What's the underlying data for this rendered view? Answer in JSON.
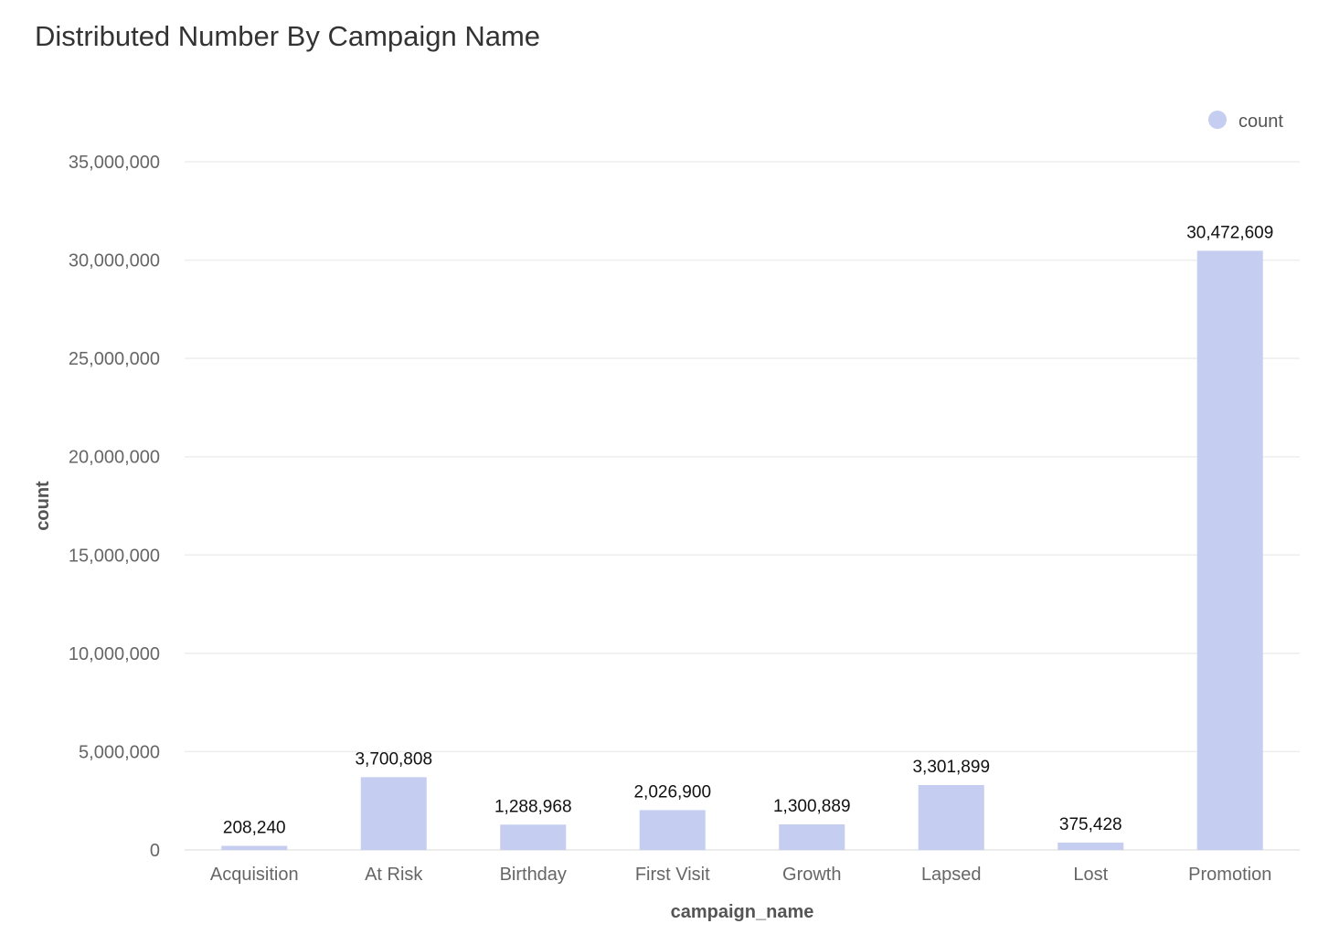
{
  "chart_data": {
    "type": "bar",
    "title": "Distributed Number By Campaign Name",
    "xlabel": "campaign_name",
    "ylabel": "count",
    "categories": [
      "Acquisition",
      "At Risk",
      "Birthday",
      "First Visit",
      "Growth",
      "Lapsed",
      "Lost",
      "Promotion"
    ],
    "series": [
      {
        "name": "count",
        "values": [
          208240,
          3700808,
          1288968,
          2026900,
          1300889,
          3301899,
          375428,
          30472609
        ],
        "value_labels": [
          "208,240",
          "3,700,808",
          "1,288,968",
          "2,026,900",
          "1,300,889",
          "3,301,899",
          "375,428",
          "30,472,609"
        ],
        "color": "#c5cef0"
      }
    ],
    "ylim": [
      0,
      35000000
    ],
    "yticks": [
      0,
      5000000,
      10000000,
      15000000,
      20000000,
      25000000,
      30000000,
      35000000
    ],
    "ytick_labels": [
      "0",
      "5,000,000",
      "10,000,000",
      "15,000,000",
      "20,000,000",
      "25,000,000",
      "30,000,000",
      "35,000,000"
    ],
    "grid": true,
    "legend": {
      "position": "top-right",
      "entries": [
        "count"
      ]
    },
    "colors": {
      "bar": "#c5cef0",
      "grid": "#eeeeee",
      "axis_line": "#e6e6e6"
    }
  }
}
